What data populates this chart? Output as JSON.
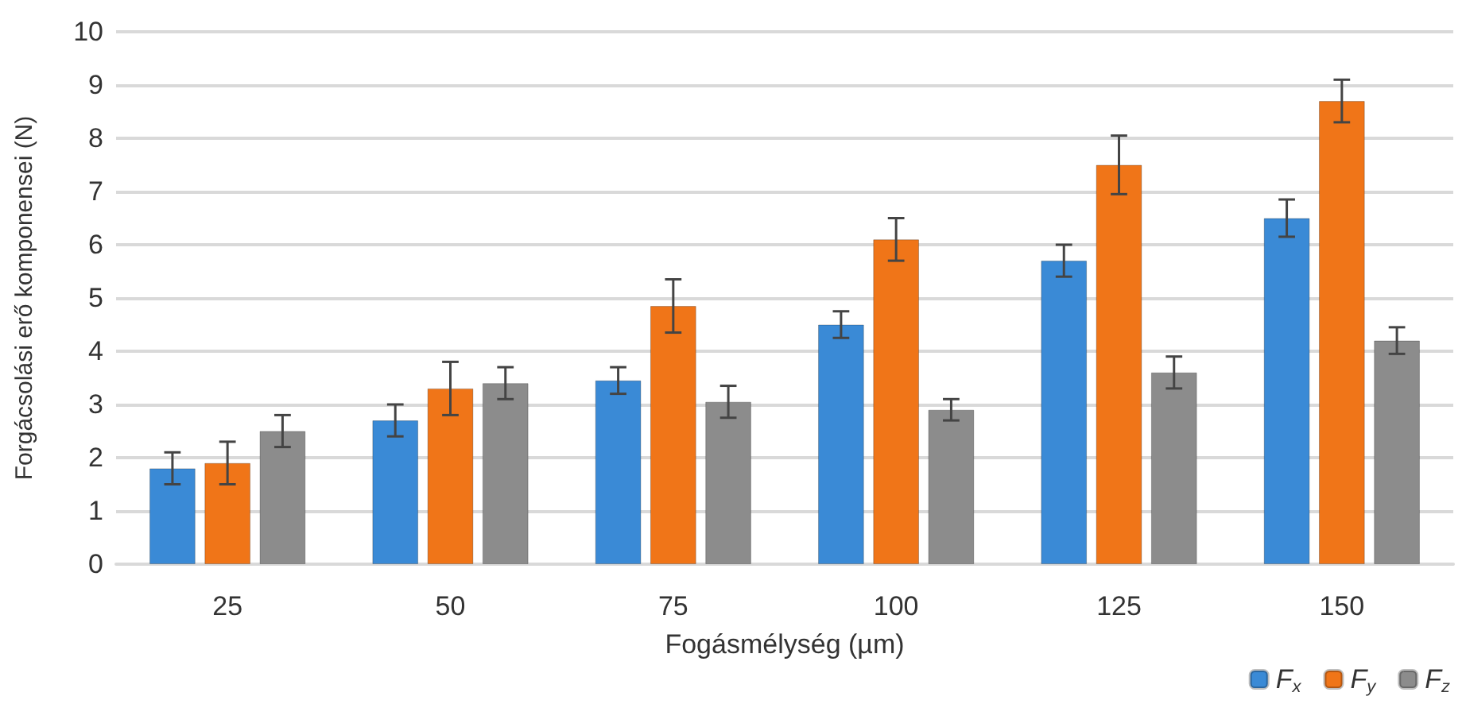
{
  "chart_data": {
    "type": "bar",
    "xlabel": "Fogásmélység (µm)",
    "ylabel": "Forgácsolási erő komponensei (N)",
    "categories": [
      "25",
      "50",
      "75",
      "100",
      "125",
      "150"
    ],
    "series": [
      {
        "name": "F$_{x}$",
        "color": "#3a8ad6",
        "values": [
          1.8,
          2.7,
          3.45,
          4.5,
          5.7,
          6.5
        ],
        "errors": [
          0.3,
          0.3,
          0.25,
          0.25,
          0.3,
          0.35
        ]
      },
      {
        "name": "F$_{y}$",
        "color": "#f07518",
        "values": [
          1.9,
          3.3,
          4.85,
          6.1,
          7.5,
          8.7
        ],
        "errors": [
          0.4,
          0.5,
          0.5,
          0.4,
          0.55,
          0.4
        ]
      },
      {
        "name": "F$_{z}$",
        "color": "#8c8c8c",
        "values": [
          2.5,
          3.4,
          3.05,
          2.9,
          3.6,
          4.2
        ],
        "errors": [
          0.3,
          0.3,
          0.3,
          0.2,
          0.3,
          0.25
        ]
      }
    ],
    "ylim": [
      0,
      10
    ],
    "yticks": [
      0,
      1,
      2,
      3,
      4,
      5,
      6,
      7,
      8,
      9,
      10
    ],
    "grid": "y",
    "legend": "bottom right"
  }
}
